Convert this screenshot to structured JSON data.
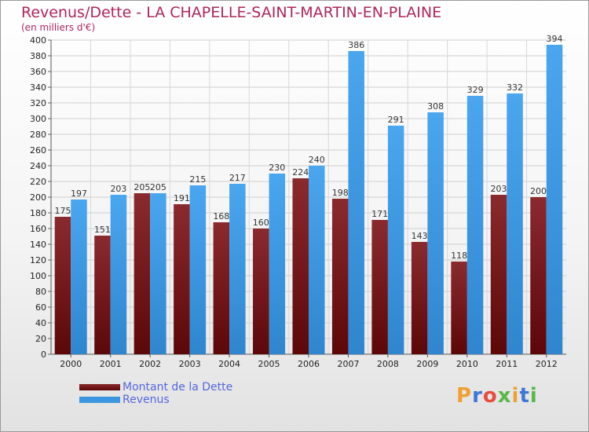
{
  "title": "Revenus/Dette - LA CHAPELLE-SAINT-MARTIN-EN-PLAINE",
  "subtitle": "(en milliers d'€)",
  "logo": "Proxiti",
  "logo_colors": [
    "#f0a030",
    "#3c78d8",
    "#e84c3d",
    "#58b848",
    "#f0a030",
    "#3c78d8",
    "#58b848"
  ],
  "colors": {
    "title": "#b0255a",
    "debt": "#7a1a1e",
    "revenue": "#3d97e0",
    "legend_text": "#5566dd"
  },
  "chart_data": {
    "type": "bar",
    "categories": [
      "2000",
      "2001",
      "2002",
      "2003",
      "2004",
      "2005",
      "2006",
      "2007",
      "2008",
      "2009",
      "2010",
      "2011",
      "2012"
    ],
    "series": [
      {
        "name": "Montant de la Dette",
        "values": [
          175,
          151,
          205,
          191,
          168,
          160,
          224,
          198,
          171,
          143,
          118,
          203,
          200
        ]
      },
      {
        "name": "Revenus",
        "values": [
          197,
          203,
          205,
          215,
          217,
          230,
          240,
          386,
          291,
          308,
          329,
          332,
          394
        ]
      }
    ],
    "ylim": [
      0,
      400
    ],
    "ytick_step": 20,
    "grid": true,
    "legend": "bottom-left"
  }
}
